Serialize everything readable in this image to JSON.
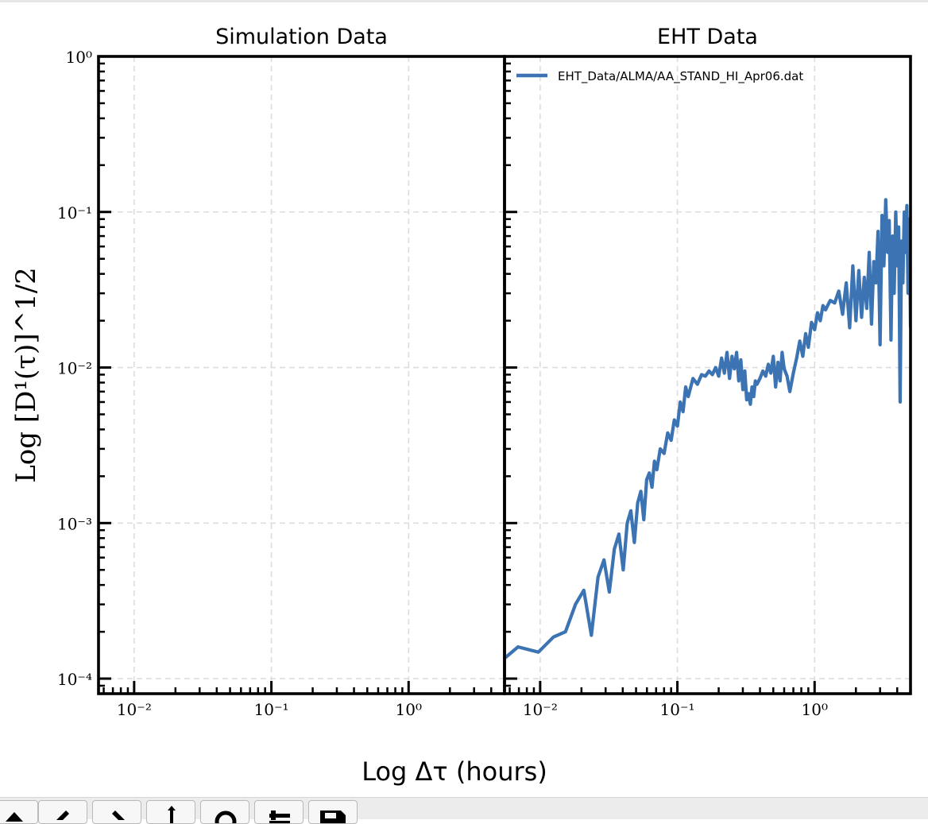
{
  "chart_data": [
    {
      "type": "line",
      "title": "Simulation Data",
      "xscale": "log",
      "yscale": "log",
      "xlim": [
        0.0055,
        5.0
      ],
      "ylim": [
        8e-05,
        1.0
      ],
      "grid": true,
      "ylabel": "Log [D¹(τ)]^1/2",
      "xticklabels": [
        "10⁻²",
        "10⁻¹",
        "10⁰"
      ],
      "yticklabels": [
        "10⁰",
        "10⁻¹",
        "10⁻²",
        "10⁻³",
        "10⁻⁴"
      ],
      "series": []
    },
    {
      "type": "line",
      "title": "EHT Data",
      "xscale": "log",
      "yscale": "log",
      "xlim": [
        0.0055,
        5.0
      ],
      "ylim": [
        8e-05,
        1.0
      ],
      "grid": true,
      "legend_position": "top-left",
      "xticklabels": [
        "10⁻²",
        "10⁻¹",
        "10⁰"
      ],
      "series": [
        {
          "name": "EHT_Data/ALMA/AA_STAND_HI_Apr06.dat",
          "color": "#3b73b3",
          "x": [
            0.0055,
            0.0069,
            0.0097,
            0.0125,
            0.0153,
            0.0181,
            0.0208,
            0.0236,
            0.0264,
            0.0292,
            0.0319,
            0.0347,
            0.0375,
            0.0403,
            0.0431,
            0.0458,
            0.0486,
            0.0514,
            0.0542,
            0.0569,
            0.0597,
            0.0625,
            0.0653,
            0.0681,
            0.0708,
            0.075,
            0.08,
            0.085,
            0.09,
            0.095,
            0.1,
            0.105,
            0.11,
            0.115,
            0.12,
            0.13,
            0.14,
            0.15,
            0.16,
            0.17,
            0.18,
            0.19,
            0.2,
            0.21,
            0.22,
            0.23,
            0.24,
            0.25,
            0.26,
            0.27,
            0.28,
            0.29,
            0.3,
            0.31,
            0.32,
            0.33,
            0.34,
            0.35,
            0.36,
            0.37,
            0.38,
            0.4,
            0.42,
            0.44,
            0.46,
            0.48,
            0.5,
            0.52,
            0.54,
            0.56,
            0.58,
            0.6,
            0.63,
            0.66,
            0.7,
            0.74,
            0.78,
            0.82,
            0.86,
            0.9,
            0.95,
            1.0,
            1.05,
            1.1,
            1.15,
            1.2,
            1.3,
            1.4,
            1.5,
            1.6,
            1.7,
            1.8,
            1.9,
            2.0,
            2.1,
            2.2,
            2.3,
            2.4,
            2.5,
            2.6,
            2.7,
            2.8,
            2.9,
            3.0,
            3.1,
            3.2,
            3.3,
            3.4,
            3.5,
            3.6,
            3.7,
            3.8,
            3.9,
            4.0,
            4.1,
            4.2,
            4.3,
            4.4,
            4.5,
            4.6,
            4.7,
            4.8,
            4.9,
            5.0
          ],
          "y": [
            0.000135,
            0.00016,
            0.000148,
            0.000185,
            0.0002,
            0.0003,
            0.00037,
            0.00019,
            0.00045,
            0.00058,
            0.00036,
            0.00068,
            0.00085,
            0.0005,
            0.001,
            0.0012,
            0.00075,
            0.00135,
            0.0016,
            0.00105,
            0.0019,
            0.0021,
            0.0017,
            0.0025,
            0.0022,
            0.003,
            0.0028,
            0.0038,
            0.0034,
            0.0046,
            0.0042,
            0.006,
            0.0052,
            0.0075,
            0.0065,
            0.0085,
            0.0078,
            0.009,
            0.0088,
            0.0095,
            0.009,
            0.01,
            0.0088,
            0.0115,
            0.0092,
            0.0125,
            0.0085,
            0.0118,
            0.0098,
            0.0125,
            0.0082,
            0.0112,
            0.0072,
            0.0095,
            0.0062,
            0.0068,
            0.0058,
            0.0075,
            0.0065,
            0.0082,
            0.0078,
            0.0085,
            0.0095,
            0.0088,
            0.0105,
            0.0092,
            0.0118,
            0.0075,
            0.0108,
            0.0082,
            0.0125,
            0.0098,
            0.0088,
            0.007,
            0.0092,
            0.0115,
            0.0148,
            0.0118,
            0.0165,
            0.0135,
            0.0195,
            0.0175,
            0.0225,
            0.02,
            0.025,
            0.0235,
            0.027,
            0.026,
            0.031,
            0.022,
            0.035,
            0.018,
            0.045,
            0.02,
            0.042,
            0.021,
            0.038,
            0.024,
            0.055,
            0.019,
            0.048,
            0.035,
            0.075,
            0.014,
            0.095,
            0.045,
            0.12,
            0.055,
            0.088,
            0.015,
            0.07,
            0.03,
            0.1,
            0.045,
            0.08,
            0.006,
            0.065,
            0.035,
            0.1,
            0.055,
            0.11,
            0.03,
            0.09,
            0.018
          ]
        }
      ]
    }
  ],
  "xlabel": "Log Δτ (hours)",
  "toolbar": {
    "buttons": [
      {
        "icon": "home-icon"
      },
      {
        "icon": "back-arrow-icon"
      },
      {
        "icon": "forward-arrow-icon"
      },
      {
        "icon": "pan-icon"
      },
      {
        "icon": "zoom-icon"
      },
      {
        "icon": "subplots-icon"
      },
      {
        "icon": "save-icon"
      }
    ]
  }
}
